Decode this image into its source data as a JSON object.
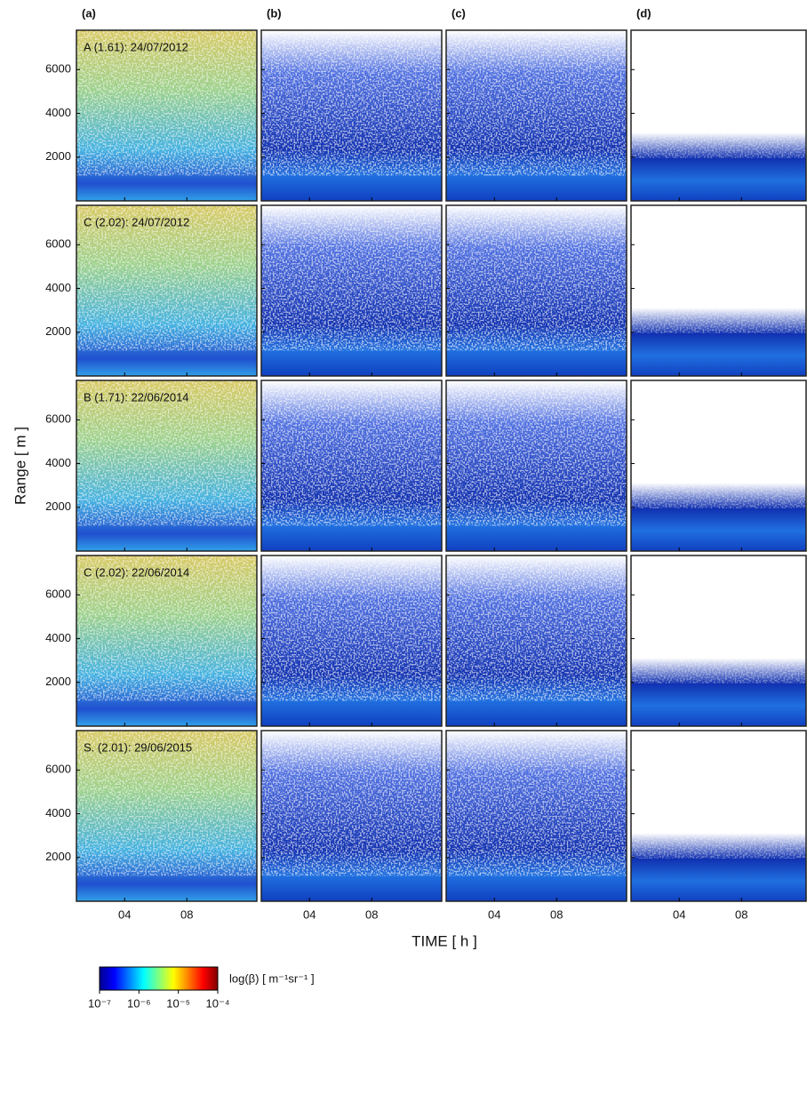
{
  "chart_data": {
    "type": "image-grid",
    "columns": [
      "(a)",
      "(b)",
      "(c)",
      "(d)"
    ],
    "rows": [
      "A (1.61): 24/07/2012",
      "C (2.02): 24/07/2012",
      "B (1.71): 22/06/2014",
      "C (2.02): 22/06/2014",
      "S. (2.01): 29/06/2015"
    ],
    "ylabel": "Range [ m ]",
    "xlabel": "TIME [ h ]",
    "ylim": [
      0,
      7800
    ],
    "yticks": [
      2000,
      4000,
      6000
    ],
    "xlim": [
      0.9,
      12.5
    ],
    "xticks": [
      {
        "value": 4,
        "label": "04"
      },
      {
        "value": 8,
        "label": "08"
      }
    ],
    "colorbar": {
      "label": "log(β) [ m⁻¹sr⁻¹ ]",
      "lim": [
        -7,
        -4
      ],
      "colormap": "jet",
      "ticks": [
        {
          "value": -7,
          "label": "10⁻⁷"
        },
        {
          "value": -6,
          "label": "10⁻⁶"
        },
        {
          "value": -5,
          "label": "10⁻⁵"
        },
        {
          "value": -4,
          "label": "10⁻⁴"
        }
      ]
    }
  }
}
